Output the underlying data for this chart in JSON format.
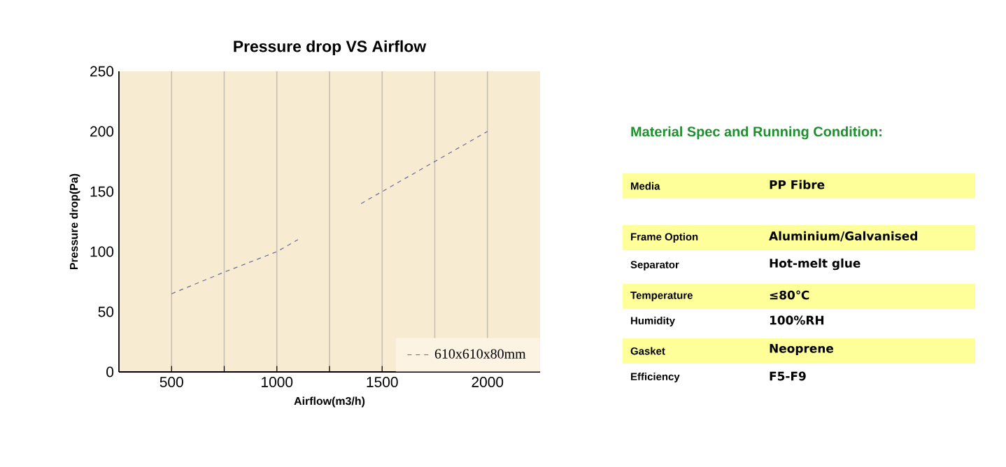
{
  "chart_data": [
    {
      "type": "line",
      "title": "Pressure drop VS Airflow",
      "xlabel": "Airflow(m3/h)",
      "ylabel": "Pressure drop(Pa)",
      "series": [
        {
          "name": "610x610x80mm",
          "color": "#6a6a9a",
          "line_style": "dashed",
          "x": [
            500,
            750,
            1000,
            1100,
            1250,
            1400,
            1700,
            2000
          ],
          "values": [
            65,
            83,
            100,
            110,
            null,
            140,
            170,
            200
          ]
        }
      ],
      "xlim": [
        250,
        2250
      ],
      "ylim": [
        0,
        250
      ],
      "xticks": [
        500,
        {
          "value": 750,
          "label": null
        },
        1000,
        {
          "value": 1250,
          "label": null
        },
        1500,
        {
          "value": 1750,
          "label": null
        },
        2000
      ],
      "yticks": [
        0,
        50,
        100,
        150,
        200,
        250
      ],
      "grid": "x",
      "legend": "bottom right"
    },
    {
      "type": "other",
      "title": "Material Spec and Running Condition:",
      "categories": [
        "Media",
        "Frame Option",
        "Separator",
        "Temperature",
        "Humidity",
        "Gasket",
        "Efficiency"
      ],
      "annotations": [
        "PP Fibre",
        "Aluminium/Galvanised",
        "Hot-melt glue",
        "≤80℃",
        "100%RH",
        "Neoprene",
        "F5-F9"
      ],
      "colors": [
        "#ffff99",
        "#ffff99",
        "#ffffff",
        "#ffff99",
        "#ffffff",
        "#ffff99",
        "#ffffff"
      ]
    }
  ]
}
